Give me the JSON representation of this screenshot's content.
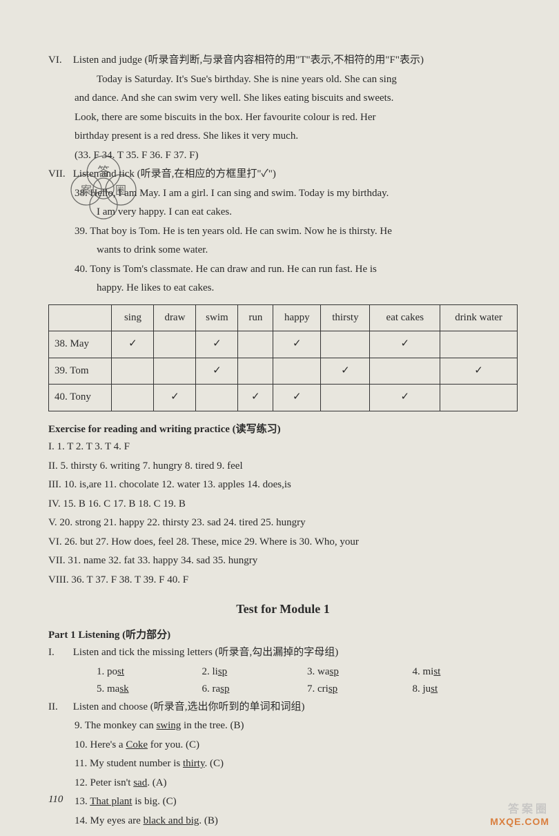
{
  "vi": {
    "label": "VI.",
    "instruction": "Listen and judge (听录音判断,与录音内容相符的用\"T\"表示,不相符的用\"F\"表示)",
    "passage1": "Today is Saturday. It's Sue's birthday. She is nine years old. She can sing",
    "passage2": "and dance. And she can swim very well. She likes eating biscuits and sweets.",
    "passage3": "Look, there are some biscuits in the box. Her favourite colour is red. Her",
    "passage4": "birthday present is a red dress. She likes it very much.",
    "answers": "(33. F   34. T   35. F   36. F   37. F)"
  },
  "vii": {
    "label": "VII.",
    "instruction": "Listen and tick (听录音,在相应的方框里打\"✓\")",
    "line38a": "38. Hello, I am May. I am a girl. I can sing and swim. Today is my birthday.",
    "line38b": "I am very happy. I can eat cakes.",
    "line39a": "39. That boy is Tom. He is ten years old. He can swim. Now he is thirsty. He",
    "line39b": "wants to drink some water.",
    "line40a": "40. Tony is Tom's classmate. He can draw and run. He can run fast. He is",
    "line40b": "happy. He likes to eat cakes."
  },
  "table": {
    "headers": [
      "",
      "sing",
      "draw",
      "swim",
      "run",
      "happy",
      "thirsty",
      "eat cakes",
      "drink water"
    ],
    "rows": [
      {
        "label": "38. May",
        "cells": [
          "✓",
          "",
          "✓",
          "",
          "✓",
          "",
          "✓",
          ""
        ]
      },
      {
        "label": "39. Tom",
        "cells": [
          "",
          "",
          "✓",
          "",
          "",
          "✓",
          "",
          "✓"
        ]
      },
      {
        "label": "40. Tony",
        "cells": [
          "",
          "✓",
          "",
          "✓",
          "✓",
          "",
          "✓",
          ""
        ]
      }
    ],
    "col_widths": [
      "90px",
      "60px",
      "60px",
      "60px",
      "50px",
      "68px",
      "70px",
      "100px",
      "110px"
    ]
  },
  "exercise": {
    "header": "Exercise for reading and writing practice (读写练习)",
    "i": "I.    1. T   2. T   3. T   4. F",
    "ii": "II.   5. thirsty   6. writing   7. hungry   8. tired   9. feel",
    "iii": "III.  10. is,are   11. chocolate   12. water   13. apples   14. does,is",
    "iv": "IV.  15. B   16. C   17. B   18. C   19. B",
    "v": "V.   20. strong   21. happy   22. thirsty   23. sad   24. tired   25. hungry",
    "vi": "VI.  26. but   27. How does, feel   28. These, mice   29. Where is   30. Who, your",
    "vii": "VII. 31. name   32. fat   33. happy   34. sad   35. hungry",
    "viii": "VIII. 36. T   37. F   38. T   39. F   40. F"
  },
  "test": {
    "header": "Test for Module 1",
    "part1": "Part 1  Listening (听力部分)",
    "i_label": "I.",
    "i_instr": "Listen and tick the missing letters (听录音,勾出漏掉的字母组)",
    "i_items": [
      {
        "n": "1.",
        "pre": "po",
        "u": "st"
      },
      {
        "n": "2.",
        "pre": "li",
        "u": "sp"
      },
      {
        "n": "3.",
        "pre": "wa",
        "u": "sp"
      },
      {
        "n": "4.",
        "pre": "mi",
        "u": "st"
      },
      {
        "n": "5.",
        "pre": "ma",
        "u": "sk"
      },
      {
        "n": "6.",
        "pre": "ra",
        "u": "sp"
      },
      {
        "n": "7.",
        "pre": "cri",
        "u": "sp"
      },
      {
        "n": "8.",
        "pre": "ju",
        "u": "st"
      }
    ],
    "ii_label": "II.",
    "ii_instr": "Listen and choose (听录音,选出你听到的单词和词组)",
    "ii_9": {
      "n": "9.",
      "pre": "The monkey can ",
      "u": "swing",
      "post": " in the tree. (B)"
    },
    "ii_10": {
      "n": "10.",
      "pre": "Here's a ",
      "u": "Coke",
      "post": " for you. (C)"
    },
    "ii_11": {
      "n": "11.",
      "pre": "My student number is ",
      "u": "thirty",
      "post": ". (C)"
    },
    "ii_12": {
      "n": "12.",
      "pre": "Peter isn't ",
      "u": "sad",
      "post": ". (A)"
    },
    "ii_13": {
      "n": "13.",
      "pre": "",
      "u": "That plant",
      "post": " is big. (C)"
    },
    "ii_14": {
      "n": "14.",
      "pre": "My eyes are ",
      "u": "black and big",
      "post": ". (B)"
    }
  },
  "page_num": "110",
  "watermark_cn": "答案圈",
  "watermark_en": "MXQE.COM"
}
